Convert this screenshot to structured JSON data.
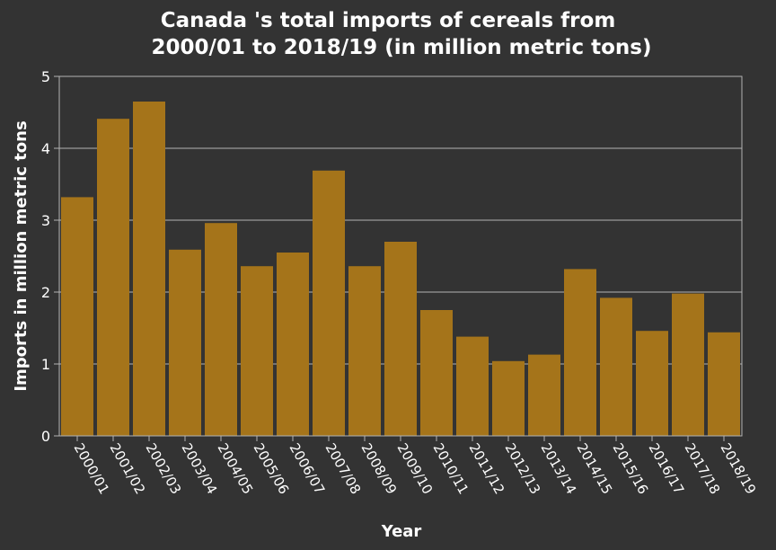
{
  "chart_data": {
    "type": "bar",
    "title_lines": [
      "Canada 's total imports of cereals from",
      "2000/01 to 2018/19 (in million metric tons)"
    ],
    "xlabel": "Year",
    "ylabel": "Imports in million metric tons",
    "categories": [
      "2000/01",
      "2001/02",
      "2002/03",
      "2003/04",
      "2004/05",
      "2005/06",
      "2006/07",
      "2007/08",
      "2008/09",
      "2009/10",
      "2010/11",
      "2011/12",
      "2012/13",
      "2013/14",
      "2014/15",
      "2015/16",
      "2016/17",
      "2017/18",
      "2018/19"
    ],
    "values": [
      3.32,
      4.41,
      4.65,
      2.59,
      2.96,
      2.36,
      2.55,
      3.69,
      2.36,
      2.7,
      1.75,
      1.38,
      1.04,
      1.13,
      2.32,
      1.92,
      1.46,
      1.98,
      1.44
    ],
    "ylim": [
      0,
      5
    ],
    "yticks": [
      0,
      1,
      2,
      3,
      4,
      5
    ],
    "grid": true,
    "colors": {
      "background": "#333333",
      "bar": "#a5741a",
      "grid": "#b3b3b3",
      "text": "#ffffff"
    }
  }
}
